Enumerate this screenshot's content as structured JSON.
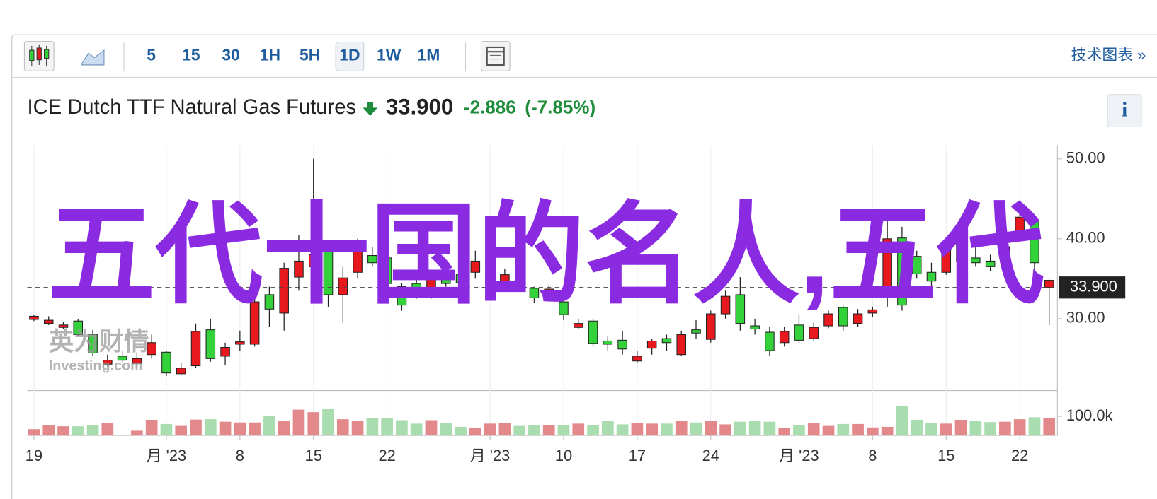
{
  "toolbar": {
    "intervals": [
      "5",
      "15",
      "30",
      "1H",
      "5H",
      "1D",
      "1W",
      "1M"
    ],
    "link": "技术图表 »"
  },
  "quote": {
    "name": "ICE Dutch TTF Natural Gas Futures",
    "price": "33.900",
    "change": "-2.886",
    "change_percent": "(-7.85%)",
    "info": "i"
  },
  "overlay_text": "五代十国的名人,五代",
  "watermark": {
    "brand": "英为财情",
    "site": "Investing.com"
  },
  "chart_data": {
    "type": "candlestick",
    "categories": [
      "19",
      null,
      null,
      null,
      null,
      null,
      null,
      null,
      null,
      "月 '23",
      null,
      null,
      null,
      null,
      "8",
      null,
      null,
      null,
      null,
      "15",
      null,
      null,
      null,
      null,
      "22",
      null,
      null,
      null,
      null,
      null,
      null,
      "月 '23",
      null,
      null,
      null,
      null,
      "10",
      null,
      null,
      null,
      null,
      "17",
      null,
      null,
      null,
      null,
      "24",
      null,
      null,
      null,
      null,
      null,
      "月 '23",
      null,
      null,
      null,
      null,
      "8",
      null,
      null,
      null,
      null,
      "15",
      null,
      null,
      null,
      null,
      "22",
      null,
      null
    ],
    "open": [
      30.3,
      29.8,
      29.2,
      28.0,
      25.7,
      24.8,
      24.8,
      25.0,
      27.0,
      23.2,
      23.8,
      28.4,
      25.0,
      26.4,
      27.1,
      32.1,
      31.2,
      36.3,
      37.2,
      38.0,
      33.0,
      35.1,
      38.8,
      37.0,
      34.4,
      31.7,
      33.0,
      34.9,
      34.4,
      34.5,
      37.2,
      35.6,
      35.5,
      34.6,
      32.6,
      33.7,
      30.5,
      29.4,
      26.9,
      26.8,
      26.2,
      25.3,
      27.2,
      27.0,
      28.0,
      28.2,
      30.6,
      32.8,
      29.4,
      28.7,
      26.0,
      28.4,
      27.3,
      28.9,
      30.6,
      29.1,
      30.6,
      31.1,
      40.0,
      31.7,
      35.6,
      34.7,
      38.6,
      39.5,
      37.0,
      36.5,
      39.0,
      42.7,
      37.0,
      34.8
    ],
    "high": [
      30.5,
      30.3,
      29.6,
      29.9,
      28.6,
      25.5,
      26.0,
      25.8,
      28.0,
      26.0,
      24.5,
      29.4,
      30.0,
      27.0,
      28.5,
      33.5,
      34.0,
      37.0,
      40.5,
      50.0,
      39.5,
      36.5,
      40.0,
      39.0,
      38.0,
      34.5,
      35.5,
      36.0,
      36.0,
      36.5,
      38.5,
      36.2,
      36.2,
      35.0,
      34.0,
      34.2,
      32.5,
      30.0,
      30.0,
      27.8,
      28.5,
      26.0,
      27.5,
      28.0,
      28.5,
      29.8,
      31.0,
      33.5,
      35.2,
      30.0,
      29.0,
      29.0,
      30.5,
      29.5,
      31.0,
      31.6,
      31.2,
      31.5,
      42.8,
      41.5,
      38.5,
      37.0,
      40.0,
      41.0,
      39.0,
      38.0,
      40.0,
      44.5,
      43.0,
      34.9
    ],
    "low": [
      29.7,
      29.2,
      28.7,
      27.8,
      25.3,
      24.0,
      24.5,
      24.0,
      25.0,
      22.8,
      22.9,
      23.8,
      24.6,
      24.2,
      26.0,
      26.5,
      29.0,
      28.5,
      33.5,
      34.0,
      31.5,
      29.5,
      35.0,
      36.5,
      33.5,
      31.0,
      32.5,
      32.5,
      34.0,
      34.0,
      35.0,
      33.8,
      33.5,
      34.0,
      32.0,
      32.5,
      29.8,
      28.7,
      26.5,
      26.0,
      25.5,
      24.4,
      25.5,
      26.0,
      25.3,
      27.5,
      27.0,
      30.0,
      28.5,
      28.0,
      25.4,
      26.5,
      27.0,
      27.2,
      28.8,
      28.5,
      29.0,
      30.2,
      31.5,
      31.0,
      35.0,
      34.0,
      35.5,
      37.0,
      36.5,
      36.0,
      37.5,
      40.0,
      34.0,
      29.2
    ],
    "close": [
      29.9,
      29.4,
      28.9,
      29.7,
      28.0,
      24.3,
      25.3,
      24.4,
      25.5,
      25.8,
      23.1,
      24.1,
      28.6,
      25.3,
      26.8,
      26.8,
      33.0,
      30.7,
      35.2,
      36.5,
      39.0,
      33.0,
      35.8,
      37.9,
      37.6,
      34.0,
      34.4,
      33.0,
      35.3,
      35.5,
      35.8,
      34.2,
      34.2,
      34.8,
      33.8,
      32.9,
      32.1,
      28.9,
      29.7,
      27.2,
      27.3,
      24.7,
      26.3,
      27.5,
      25.5,
      28.6,
      27.4,
      30.6,
      33.0,
      29.1,
      28.3,
      27.0,
      29.2,
      27.5,
      29.1,
      31.4,
      29.4,
      30.7,
      33.0,
      40.1,
      37.8,
      35.8,
      35.8,
      37.2,
      37.6,
      37.2,
      38.1,
      40.9,
      42.3,
      33.9
    ],
    "volume": [
      33000,
      52000,
      48000,
      48000,
      52000,
      65000,
      3000,
      25000,
      82000,
      60000,
      50000,
      83000,
      85000,
      72000,
      68000,
      68000,
      100000,
      78000,
      135000,
      122000,
      138000,
      85000,
      78000,
      90000,
      90000,
      80000,
      62000,
      80000,
      65000,
      45000,
      40000,
      62000,
      65000,
      50000,
      55000,
      55000,
      55000,
      62000,
      55000,
      75000,
      58000,
      65000,
      62000,
      62000,
      75000,
      68000,
      75000,
      58000,
      72000,
      75000,
      72000,
      38000,
      55000,
      65000,
      50000,
      60000,
      60000,
      42000,
      45000,
      155000,
      82000,
      65000,
      62000,
      82000,
      75000,
      70000,
      72000,
      85000,
      95000,
      90000
    ],
    "up_color": "#34d23a",
    "down_color": "#e8191e",
    "up_volume_color": "#a9dcae",
    "down_volume_color": "#e3898b",
    "ylim": [
      21,
      51.7
    ],
    "yticks": [
      {
        "value": 50,
        "label": "50.00"
      },
      {
        "value": 40,
        "label": "40.00"
      },
      {
        "value": 30,
        "label": "30.00"
      }
    ],
    "volume_ylim": [
      0,
      235000
    ],
    "volume_ticks": [
      {
        "value": 100000,
        "label": "100.0k"
      }
    ],
    "last_price": {
      "value": 33.9,
      "label": "33.900"
    }
  }
}
